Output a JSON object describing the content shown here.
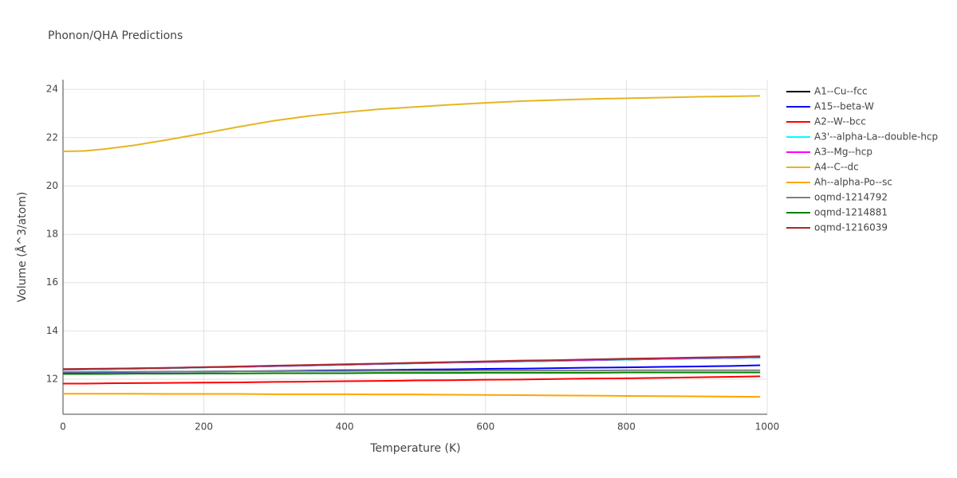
{
  "chart_data": {
    "type": "line",
    "title": "Phonon/QHA Predictions",
    "x_label": "Temperature (K)",
    "y_label": "Volume (Å^3/atom)",
    "x": [
      0,
      30,
      60,
      100,
      150,
      200,
      250,
      300,
      350,
      400,
      450,
      500,
      550,
      600,
      650,
      700,
      750,
      800,
      850,
      900,
      950,
      990
    ],
    "xlim": [
      0,
      1000
    ],
    "xticks": [
      0,
      200,
      400,
      600,
      800,
      1000
    ],
    "ylim": [
      10.55,
      24.4
    ],
    "yticks": [
      12,
      14,
      16,
      18,
      20,
      22,
      24
    ],
    "grid": true,
    "legend": "right",
    "series": [
      {
        "name": "A1--Cu--fcc",
        "color": "#000000",
        "values": [
          12.4,
          12.41,
          12.42,
          12.44,
          12.46,
          12.49,
          12.51,
          12.54,
          12.57,
          12.6,
          12.63,
          12.66,
          12.69,
          12.71,
          12.74,
          12.76,
          12.79,
          12.81,
          12.84,
          12.86,
          12.88,
          12.9
        ]
      },
      {
        "name": "A15--beta-W",
        "color": "#0000ff",
        "values": [
          12.28,
          12.28,
          12.29,
          12.3,
          12.31,
          12.32,
          12.33,
          12.34,
          12.36,
          12.37,
          12.38,
          12.4,
          12.41,
          12.43,
          12.44,
          12.46,
          12.48,
          12.49,
          12.51,
          12.53,
          12.55,
          12.58
        ]
      },
      {
        "name": "A2--W--bcc",
        "color": "#ff0000",
        "values": [
          11.82,
          11.82,
          11.83,
          11.84,
          11.85,
          11.86,
          11.87,
          11.89,
          11.9,
          11.92,
          11.93,
          11.95,
          11.96,
          11.98,
          11.99,
          12.01,
          12.03,
          12.04,
          12.06,
          12.08,
          12.1,
          12.12
        ]
      },
      {
        "name": "A3'--alpha-La--double-hcp",
        "color": "#00ffff",
        "values": [
          12.4,
          12.41,
          12.42,
          12.44,
          12.46,
          12.49,
          12.51,
          12.54,
          12.57,
          12.6,
          12.63,
          12.66,
          12.69,
          12.71,
          12.74,
          12.76,
          12.79,
          12.81,
          12.84,
          12.86,
          12.88,
          12.9
        ]
      },
      {
        "name": "A3--Mg--hcp",
        "color": "#ff00ff",
        "values": [
          12.41,
          12.42,
          12.43,
          12.45,
          12.47,
          12.5,
          12.52,
          12.55,
          12.58,
          12.61,
          12.64,
          12.67,
          12.7,
          12.72,
          12.75,
          12.78,
          12.8,
          12.83,
          12.85,
          12.88,
          12.9,
          12.92
        ]
      },
      {
        "name": "A4--C--dc",
        "color": "#e6b520",
        "values": [
          21.43,
          21.45,
          21.53,
          21.68,
          21.92,
          22.18,
          22.45,
          22.7,
          22.9,
          23.05,
          23.18,
          23.27,
          23.36,
          23.44,
          23.51,
          23.56,
          23.6,
          23.63,
          23.66,
          23.69,
          23.71,
          23.73
        ]
      },
      {
        "name": "Ah--alpha-Po--sc",
        "color": "#ffa500",
        "values": [
          11.4,
          11.4,
          11.4,
          11.4,
          11.39,
          11.39,
          11.39,
          11.38,
          11.38,
          11.38,
          11.37,
          11.37,
          11.36,
          11.35,
          11.34,
          11.33,
          11.32,
          11.31,
          11.3,
          11.29,
          11.28,
          11.27
        ]
      },
      {
        "name": "oqmd-1214792",
        "color": "#808080",
        "values": [
          12.3,
          12.3,
          12.31,
          12.31,
          12.32,
          12.32,
          12.33,
          12.33,
          12.34,
          12.34,
          12.35,
          12.35,
          12.35,
          12.36,
          12.36,
          12.36,
          12.36,
          12.37,
          12.37,
          12.37,
          12.37,
          12.37
        ]
      },
      {
        "name": "oqmd-1214881",
        "color": "#008000",
        "values": [
          12.22,
          12.22,
          12.22,
          12.23,
          12.23,
          12.24,
          12.24,
          12.25,
          12.25,
          12.25,
          12.26,
          12.26,
          12.26,
          12.27,
          12.27,
          12.27,
          12.27,
          12.28,
          12.28,
          12.28,
          12.28,
          12.28
        ]
      },
      {
        "name": "oqmd-1216039",
        "color": "#a52a2a",
        "values": [
          12.42,
          12.43,
          12.44,
          12.45,
          12.47,
          12.5,
          12.53,
          12.56,
          12.59,
          12.62,
          12.65,
          12.68,
          12.71,
          12.74,
          12.77,
          12.79,
          12.82,
          12.85,
          12.87,
          12.9,
          12.92,
          12.95
        ]
      }
    ]
  }
}
